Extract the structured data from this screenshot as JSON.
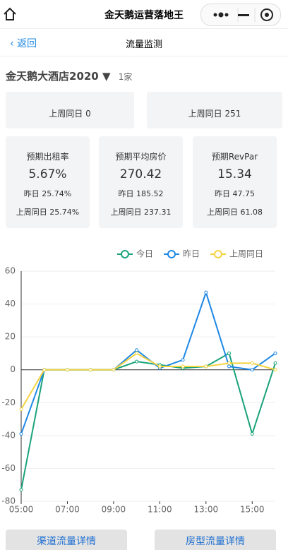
{
  "header": {
    "title": "金天鹅运营落地王"
  },
  "nav": {
    "back": "返回",
    "title": "流量监测"
  },
  "selector": {
    "hotel": "金天鹅大酒店2020",
    "count": "1家"
  },
  "top_cards": [
    {
      "last_week": "上周同日 0"
    },
    {
      "last_week": "上周同日 251"
    }
  ],
  "cards": [
    {
      "title": "预期出租率",
      "value": "5.67%",
      "yesterday": "昨日 25.74%",
      "last_week": "上周同日 25.74%"
    },
    {
      "title": "预期平均房价",
      "value": "270.42",
      "yesterday": "昨日 185.52",
      "last_week": "上周同日 237.31"
    },
    {
      "title": "预期RevPar",
      "value": "15.34",
      "yesterday": "昨日 47.75",
      "last_week": "上周同日 61.08"
    }
  ],
  "chart_data": {
    "type": "line",
    "categories": [
      "05:00",
      null,
      "07:00",
      null,
      "09:00",
      null,
      "11:00",
      null,
      "13:00",
      null,
      "15:00",
      null
    ],
    "series": [
      {
        "name": "今日",
        "color": "#1aa37a",
        "values": [
          -73,
          0,
          0,
          0,
          0,
          5,
          3,
          1,
          2,
          10,
          -39,
          4
        ]
      },
      {
        "name": "昨日",
        "color": "#1e88e5",
        "values": [
          -39,
          0,
          0,
          0,
          0,
          12,
          1,
          6,
          47,
          2,
          0,
          10
        ]
      },
      {
        "name": "上周同日",
        "color": "#f5d33f",
        "values": [
          -24,
          0,
          0,
          0,
          0,
          10,
          2,
          2,
          2,
          4,
          4,
          0
        ]
      }
    ],
    "ylim": [
      -80,
      60
    ],
    "yticks": [
      -80,
      -60,
      -40,
      -20,
      0,
      20,
      40,
      60
    ],
    "grid": true,
    "legend": "top-right"
  },
  "buttons": [
    "渠道流量详情",
    "房型流量详情"
  ]
}
